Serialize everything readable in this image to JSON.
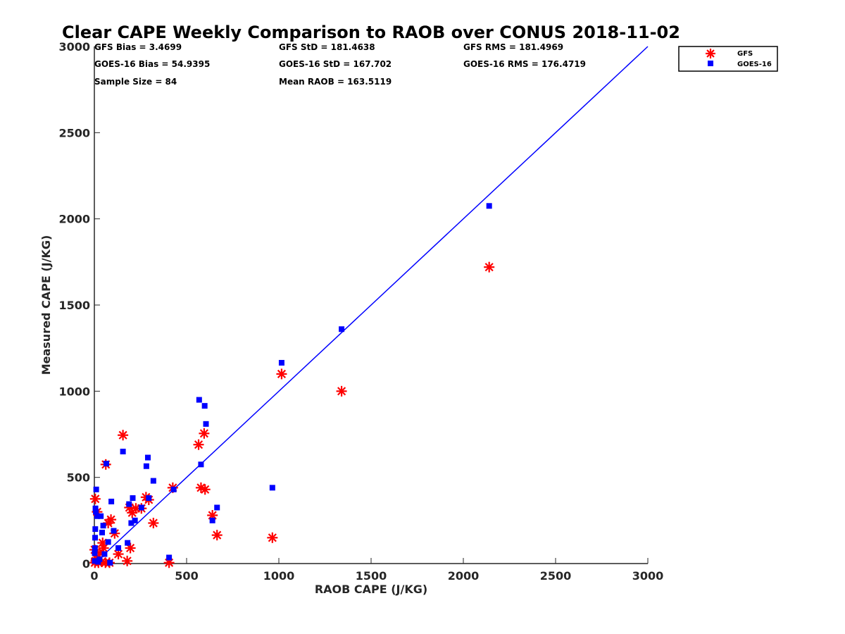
{
  "chart_data": {
    "type": "scatter",
    "title": "Clear CAPE Weekly Comparison to RAOB over CONUS 2018-11-02",
    "xlabel": "RAOB CAPE (J/KG)",
    "ylabel": "Measured CAPE (J/KG)",
    "xlim": [
      0,
      3000
    ],
    "ylim": [
      0,
      3000
    ],
    "xticks": [
      "0",
      "500",
      "1000",
      "1500",
      "2000",
      "2500",
      "3000"
    ],
    "yticks": [
      "0",
      "500",
      "1000",
      "1500",
      "2000",
      "2500",
      "3000"
    ],
    "grid": false,
    "legend_position": "top-right",
    "stats": [
      [
        "GFS Bias = 3.4699",
        "GFS StD = 181.4638",
        "GFS RMS = 181.4969"
      ],
      [
        "GOES-16 Bias = 54.9395",
        "GOES-16 StD = 167.702",
        "GOES-16 RMS = 176.4719"
      ],
      [
        "Sample Size = 84",
        "Mean RAOB = 163.5119",
        ""
      ]
    ],
    "reference_line": [
      [
        0,
        0
      ],
      [
        3000,
        3000
      ]
    ],
    "series": [
      {
        "name": "GFS",
        "marker": "asterisk",
        "color": "#ff0000",
        "points": [
          [
            2140,
            1720
          ],
          [
            1340,
            1000
          ],
          [
            1015,
            1100
          ],
          [
            965,
            150
          ],
          [
            665,
            165
          ],
          [
            640,
            280
          ],
          [
            600,
            430
          ],
          [
            595,
            755
          ],
          [
            578,
            440
          ],
          [
            565,
            690
          ],
          [
            425,
            440
          ],
          [
            405,
            5
          ],
          [
            320,
            235
          ],
          [
            295,
            370
          ],
          [
            280,
            385
          ],
          [
            255,
            320
          ],
          [
            225,
            320
          ],
          [
            205,
            295
          ],
          [
            195,
            90
          ],
          [
            190,
            325
          ],
          [
            178,
            15
          ],
          [
            155,
            745
          ],
          [
            130,
            55
          ],
          [
            110,
            175
          ],
          [
            90,
            255
          ],
          [
            82,
            5
          ],
          [
            75,
            235
          ],
          [
            62,
            575
          ],
          [
            60,
            5
          ],
          [
            50,
            90
          ],
          [
            45,
            120
          ],
          [
            40,
            10
          ],
          [
            30,
            60
          ],
          [
            22,
            5
          ],
          [
            15,
            300
          ],
          [
            10,
            30
          ],
          [
            5,
            375
          ],
          [
            3,
            5
          ],
          [
            2,
            80
          ],
          [
            8,
            15
          ]
        ]
      },
      {
        "name": "GOES-16",
        "marker": "square",
        "color": "#0000ff",
        "points": [
          [
            2140,
            2075
          ],
          [
            1340,
            1360
          ],
          [
            1015,
            1165
          ],
          [
            965,
            440
          ],
          [
            665,
            325
          ],
          [
            640,
            250
          ],
          [
            605,
            810
          ],
          [
            598,
            915
          ],
          [
            578,
            575
          ],
          [
            568,
            950
          ],
          [
            430,
            430
          ],
          [
            405,
            35
          ],
          [
            320,
            480
          ],
          [
            295,
            380
          ],
          [
            290,
            615
          ],
          [
            282,
            565
          ],
          [
            255,
            325
          ],
          [
            220,
            250
          ],
          [
            208,
            380
          ],
          [
            200,
            235
          ],
          [
            188,
            345
          ],
          [
            180,
            120
          ],
          [
            155,
            650
          ],
          [
            130,
            90
          ],
          [
            105,
            190
          ],
          [
            92,
            360
          ],
          [
            85,
            5
          ],
          [
            75,
            125
          ],
          [
            65,
            580
          ],
          [
            55,
            55
          ],
          [
            48,
            220
          ],
          [
            42,
            180
          ],
          [
            35,
            275
          ],
          [
            28,
            25
          ],
          [
            20,
            10
          ],
          [
            15,
            275
          ],
          [
            10,
            430
          ],
          [
            8,
            300
          ],
          [
            6,
            320
          ],
          [
            5,
            200
          ],
          [
            4,
            150
          ],
          [
            3,
            90
          ],
          [
            2,
            60
          ],
          [
            2,
            15
          ]
        ]
      }
    ]
  }
}
